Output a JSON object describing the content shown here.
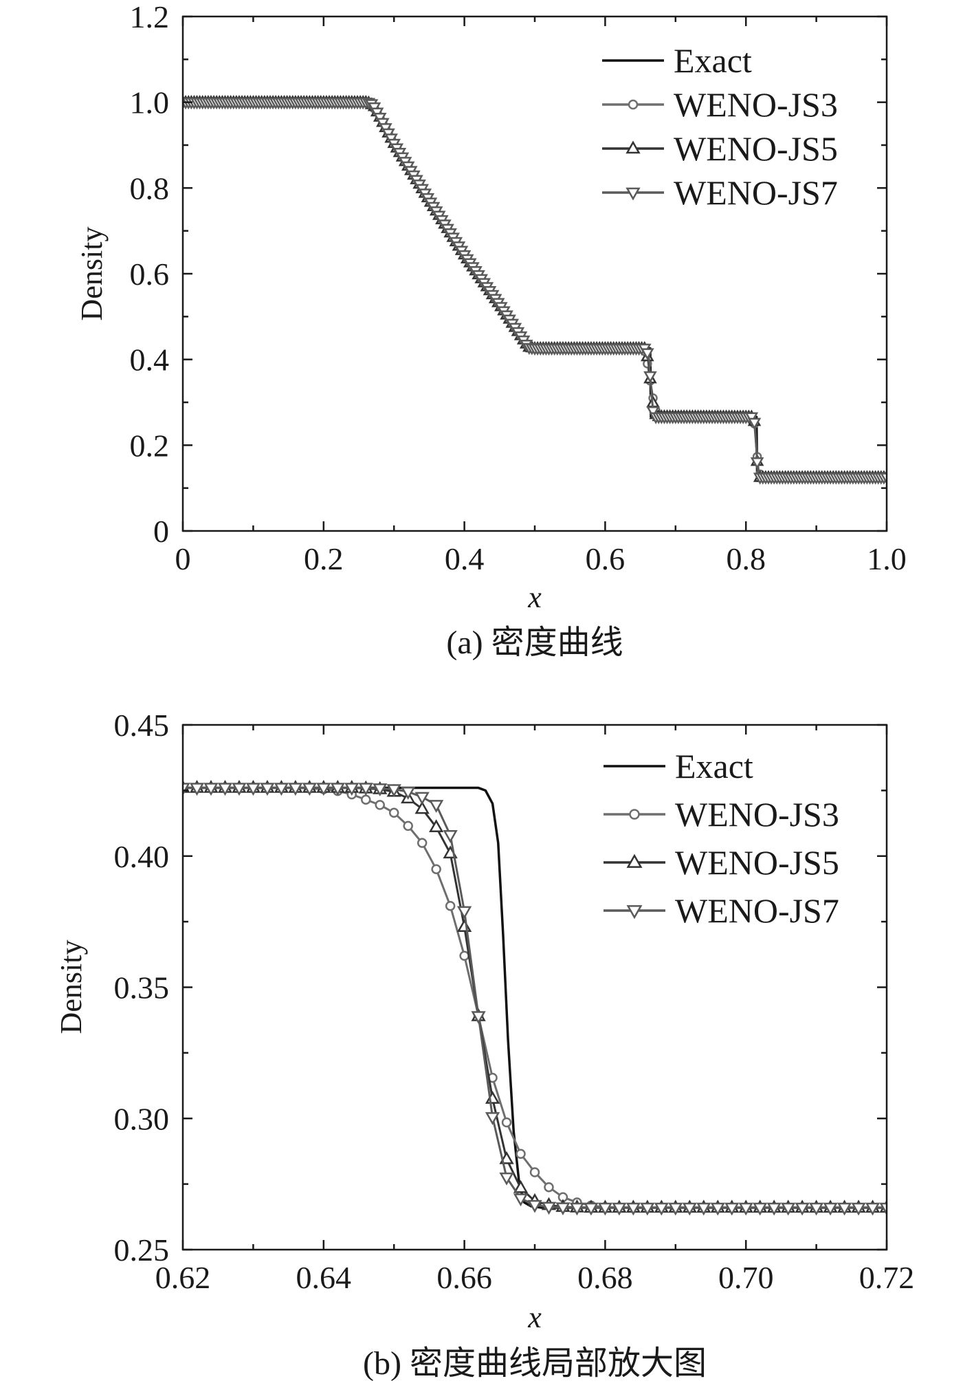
{
  "chart_data": [
    {
      "type": "line",
      "panel": "a",
      "caption": "(a) 密度曲线",
      "xlabel": "x",
      "ylabel": "Density",
      "xlim": [
        0,
        1.0
      ],
      "ylim": [
        0,
        1.2
      ],
      "xticks": [
        0,
        0.2,
        0.4,
        0.6,
        0.8,
        1.0
      ],
      "xtick_labels": [
        "0",
        "0.2",
        "0.4",
        "0.6",
        "0.8",
        "1.0"
      ],
      "yticks": [
        0,
        0.2,
        0.4,
        0.6,
        0.8,
        1.0,
        1.2
      ],
      "ytick_labels": [
        "0",
        "0.2",
        "0.4",
        "0.6",
        "0.8",
        "1.0",
        "1.2"
      ],
      "legend_position": "top-right",
      "colors": {
        "Exact": "#111111",
        "WENO-JS3": "#6e6e6e",
        "WENO-JS5": "#333333",
        "WENO-JS7": "#5a5a5a"
      },
      "series": [
        {
          "name": "Exact",
          "marker": "none",
          "x": [
            0,
            0.263,
            0.3,
            0.35,
            0.4,
            0.45,
            0.492,
            0.664,
            0.665,
            0.815,
            0.816,
            1.0
          ],
          "y": [
            1.0,
            1.0,
            0.904,
            0.772,
            0.644,
            0.528,
            0.426,
            0.426,
            0.266,
            0.266,
            0.125,
            0.125
          ]
        },
        {
          "name": "WENO-JS3",
          "marker": "circle",
          "markers_every": 0.004,
          "x": [
            0,
            0.262,
            0.275,
            0.3,
            0.35,
            0.4,
            0.45,
            0.49,
            0.5,
            0.655,
            0.66,
            0.665,
            0.67,
            0.675,
            0.81,
            0.812,
            0.815,
            0.818,
            0.822,
            1.0
          ],
          "y": [
            1.0,
            1.0,
            0.98,
            0.904,
            0.772,
            0.644,
            0.528,
            0.432,
            0.426,
            0.426,
            0.39,
            0.34,
            0.29,
            0.268,
            0.266,
            0.25,
            0.19,
            0.14,
            0.125,
            0.125
          ]
        },
        {
          "name": "WENO-JS5",
          "marker": "triangle-up",
          "markers_every": 0.004,
          "x": [
            0,
            0.263,
            0.272,
            0.3,
            0.35,
            0.4,
            0.45,
            0.491,
            0.5,
            0.657,
            0.661,
            0.665,
            0.669,
            0.673,
            0.811,
            0.813,
            0.815,
            0.817,
            0.82,
            1.0
          ],
          "y": [
            1.0,
            1.0,
            0.99,
            0.904,
            0.772,
            0.644,
            0.528,
            0.429,
            0.426,
            0.426,
            0.4,
            0.34,
            0.285,
            0.267,
            0.266,
            0.245,
            0.19,
            0.135,
            0.125,
            0.125
          ]
        },
        {
          "name": "WENO-JS7",
          "marker": "triangle-down",
          "markers_every": 0.004,
          "x": [
            0,
            0.263,
            0.27,
            0.3,
            0.35,
            0.4,
            0.45,
            0.491,
            0.5,
            0.658,
            0.662,
            0.665,
            0.668,
            0.672,
            0.811,
            0.813,
            0.815,
            0.817,
            0.82,
            1.0
          ],
          "y": [
            1.0,
            1.0,
            0.995,
            0.904,
            0.772,
            0.644,
            0.528,
            0.428,
            0.426,
            0.426,
            0.405,
            0.34,
            0.28,
            0.266,
            0.266,
            0.24,
            0.19,
            0.132,
            0.125,
            0.125
          ]
        }
      ]
    },
    {
      "type": "line",
      "panel": "b",
      "caption": "(b) 密度曲线局部放大图",
      "xlabel": "x",
      "ylabel": "Density",
      "xlim": [
        0.62,
        0.72
      ],
      "ylim": [
        0.25,
        0.45
      ],
      "xticks": [
        0.62,
        0.64,
        0.66,
        0.68,
        0.7,
        0.72
      ],
      "xtick_labels": [
        "0.62",
        "0.64",
        "0.66",
        "0.68",
        "0.70",
        "0.72"
      ],
      "yticks": [
        0.25,
        0.3,
        0.35,
        0.4,
        0.45
      ],
      "ytick_labels": [
        "0.25",
        "0.30",
        "0.35",
        "0.40",
        "0.45"
      ],
      "legend_position": "top-right",
      "colors": {
        "Exact": "#111111",
        "WENO-JS3": "#6e6e6e",
        "WENO-JS5": "#333333",
        "WENO-JS7": "#5a5a5a"
      },
      "series": [
        {
          "name": "Exact",
          "marker": "none",
          "x": [
            0.62,
            0.662,
            0.663,
            0.664,
            0.6648,
            0.6655,
            0.6662,
            0.667,
            0.6678,
            0.6685,
            0.6695,
            0.671,
            0.673,
            0.72
          ],
          "y": [
            0.426,
            0.426,
            0.425,
            0.42,
            0.405,
            0.37,
            0.33,
            0.295,
            0.275,
            0.268,
            0.2665,
            0.266,
            0.266,
            0.266
          ]
        },
        {
          "name": "WENO-JS3",
          "marker": "circle",
          "x": [
            0.62,
            0.622,
            0.624,
            0.626,
            0.628,
            0.63,
            0.632,
            0.634,
            0.636,
            0.638,
            0.64,
            0.642,
            0.644,
            0.646,
            0.648,
            0.65,
            0.652,
            0.654,
            0.656,
            0.658,
            0.66,
            0.662,
            0.664,
            0.666,
            0.668,
            0.67,
            0.672,
            0.674,
            0.676,
            0.678,
            0.68,
            0.682,
            0.684,
            0.686,
            0.688,
            0.69,
            0.692,
            0.694,
            0.696,
            0.698,
            0.7,
            0.702,
            0.704,
            0.706,
            0.708,
            0.71,
            0.712,
            0.714,
            0.716,
            0.718,
            0.72
          ],
          "y": [
            0.426,
            0.426,
            0.426,
            0.426,
            0.426,
            0.426,
            0.426,
            0.426,
            0.426,
            0.4258,
            0.4255,
            0.4248,
            0.4235,
            0.4215,
            0.4195,
            0.4165,
            0.4115,
            0.405,
            0.395,
            0.381,
            0.362,
            0.339,
            0.3155,
            0.2985,
            0.2865,
            0.2795,
            0.2738,
            0.27,
            0.268,
            0.2668,
            0.2662,
            0.2661,
            0.266,
            0.266,
            0.266,
            0.266,
            0.266,
            0.266,
            0.266,
            0.266,
            0.266,
            0.266,
            0.266,
            0.266,
            0.266,
            0.266,
            0.266,
            0.266,
            0.266,
            0.266,
            0.266
          ]
        },
        {
          "name": "WENO-JS5",
          "marker": "triangle-up",
          "x": [
            0.62,
            0.622,
            0.624,
            0.626,
            0.628,
            0.63,
            0.632,
            0.634,
            0.636,
            0.638,
            0.64,
            0.642,
            0.644,
            0.646,
            0.648,
            0.65,
            0.652,
            0.654,
            0.656,
            0.658,
            0.66,
            0.662,
            0.664,
            0.666,
            0.668,
            0.67,
            0.672,
            0.674,
            0.676,
            0.678,
            0.68,
            0.682,
            0.684,
            0.686,
            0.688,
            0.69,
            0.692,
            0.694,
            0.696,
            0.698,
            0.7,
            0.702,
            0.704,
            0.706,
            0.708,
            0.71,
            0.712,
            0.714,
            0.716,
            0.718,
            0.72
          ],
          "y": [
            0.426,
            0.426,
            0.426,
            0.426,
            0.426,
            0.426,
            0.426,
            0.426,
            0.426,
            0.426,
            0.426,
            0.426,
            0.426,
            0.4258,
            0.4255,
            0.4245,
            0.422,
            0.418,
            0.411,
            0.401,
            0.373,
            0.339,
            0.3075,
            0.2845,
            0.2735,
            0.2685,
            0.267,
            0.2663,
            0.2661,
            0.266,
            0.266,
            0.266,
            0.266,
            0.266,
            0.266,
            0.266,
            0.266,
            0.266,
            0.266,
            0.266,
            0.266,
            0.266,
            0.266,
            0.266,
            0.266,
            0.266,
            0.266,
            0.266,
            0.266,
            0.266,
            0.266
          ]
        },
        {
          "name": "WENO-JS7",
          "marker": "triangle-down",
          "x": [
            0.62,
            0.622,
            0.624,
            0.626,
            0.628,
            0.63,
            0.632,
            0.634,
            0.636,
            0.638,
            0.64,
            0.642,
            0.644,
            0.646,
            0.648,
            0.65,
            0.652,
            0.654,
            0.656,
            0.658,
            0.66,
            0.662,
            0.664,
            0.666,
            0.668,
            0.67,
            0.672,
            0.674,
            0.676,
            0.678,
            0.68,
            0.682,
            0.684,
            0.686,
            0.688,
            0.69,
            0.692,
            0.694,
            0.696,
            0.698,
            0.7,
            0.702,
            0.704,
            0.706,
            0.708,
            0.71,
            0.712,
            0.714,
            0.716,
            0.718,
            0.72
          ],
          "y": [
            0.426,
            0.426,
            0.426,
            0.426,
            0.426,
            0.426,
            0.426,
            0.426,
            0.426,
            0.426,
            0.426,
            0.426,
            0.426,
            0.426,
            0.4258,
            0.4255,
            0.4245,
            0.4225,
            0.4195,
            0.408,
            0.379,
            0.339,
            0.3005,
            0.2775,
            0.2695,
            0.267,
            0.2663,
            0.2661,
            0.266,
            0.266,
            0.266,
            0.266,
            0.266,
            0.266,
            0.266,
            0.266,
            0.266,
            0.266,
            0.266,
            0.266,
            0.266,
            0.266,
            0.266,
            0.266,
            0.266,
            0.266,
            0.266,
            0.266,
            0.266,
            0.266,
            0.266
          ]
        }
      ]
    }
  ]
}
